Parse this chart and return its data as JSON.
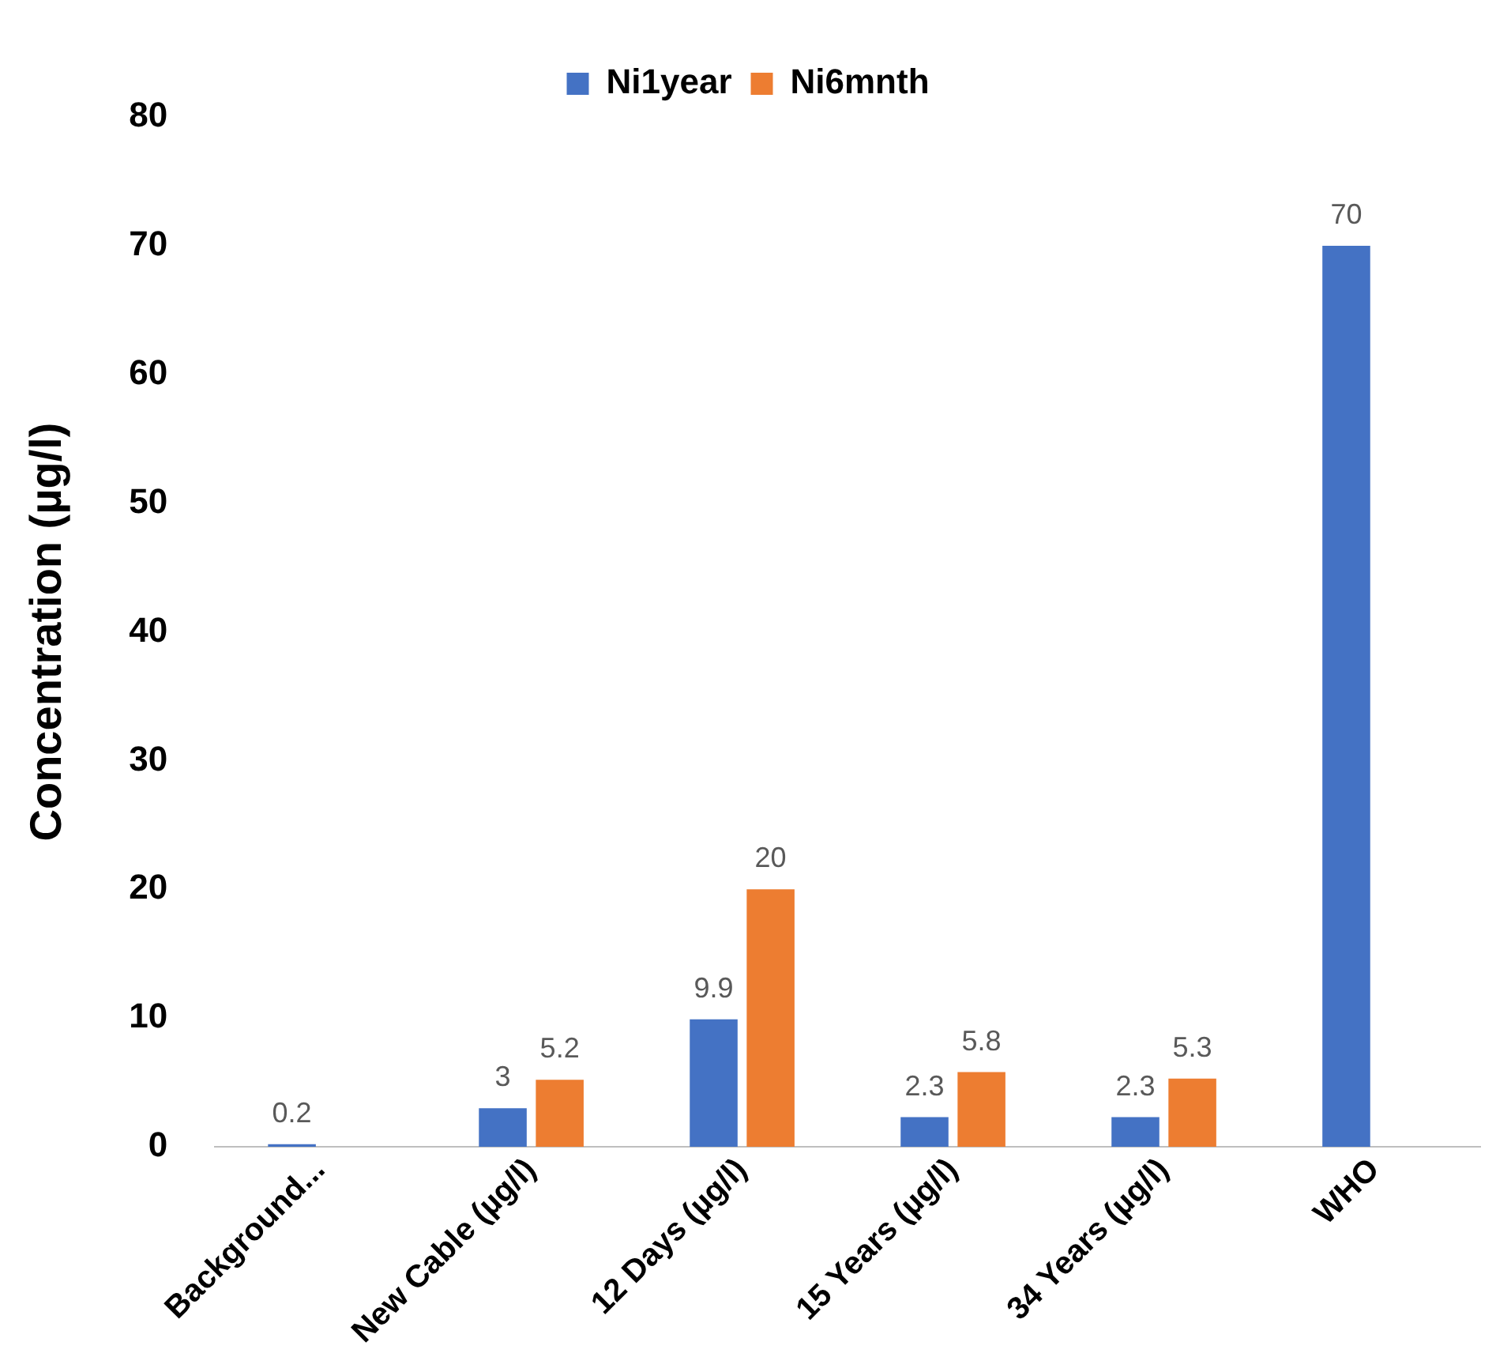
{
  "chart_data": {
    "type": "bar",
    "ylabel": "Concentration (µg/l)",
    "categories": [
      "Background...",
      "New Cable (µg/l)",
      "12 Days (µg/l)",
      "15 Years (µg/l)",
      "34 Years (µg/l)",
      "WHO"
    ],
    "series": [
      {
        "name": "Ni1year",
        "color": "#4472c4",
        "values": [
          0.2,
          3,
          9.9,
          2.3,
          2.3,
          70
        ]
      },
      {
        "name": "Ni6mnth",
        "color": "#ed7d31",
        "values": [
          null,
          5.2,
          20,
          5.8,
          5.3,
          null
        ]
      }
    ],
    "ylim": [
      0,
      80
    ],
    "yticks": [
      0,
      10,
      20,
      30,
      40,
      50,
      60,
      70,
      80
    ],
    "grid": false,
    "legend": "top",
    "data_labels": true
  }
}
